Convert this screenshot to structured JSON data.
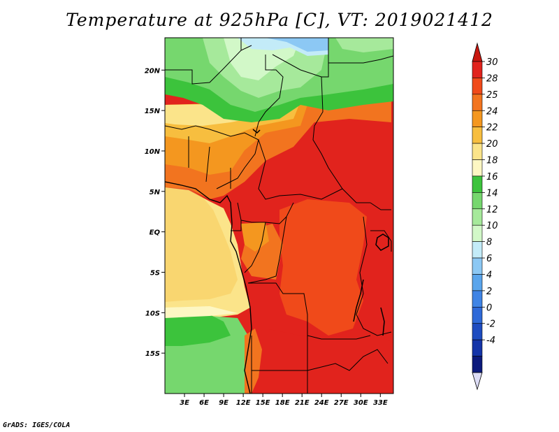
{
  "title": "Temperature at 925hPa [C], VT: 2019021412",
  "credit": "GrADS: IGES/COLA",
  "map": {
    "lon_range": [
      0,
      35
    ],
    "lat_range": [
      -20,
      24
    ],
    "x_ticks": [
      {
        "lon": 3,
        "label": "3E"
      },
      {
        "lon": 6,
        "label": "6E"
      },
      {
        "lon": 9,
        "label": "9E"
      },
      {
        "lon": 12,
        "label": "12E"
      },
      {
        "lon": 15,
        "label": "15E"
      },
      {
        "lon": 18,
        "label": "18E"
      },
      {
        "lon": 21,
        "label": "21E"
      },
      {
        "lon": 24,
        "label": "24E"
      },
      {
        "lon": 27,
        "label": "27E"
      },
      {
        "lon": 30,
        "label": "30E"
      },
      {
        "lon": 33,
        "label": "33E"
      }
    ],
    "y_ticks": [
      {
        "lat": 20,
        "label": "20N"
      },
      {
        "lat": 15,
        "label": "15N"
      },
      {
        "lat": 10,
        "label": "10N"
      },
      {
        "lat": 5,
        "label": "5N"
      },
      {
        "lat": 0,
        "label": "EQ"
      },
      {
        "lat": -5,
        "label": "5S"
      },
      {
        "lat": -10,
        "label": "10S"
      },
      {
        "lat": -15,
        "label": "15S"
      }
    ]
  },
  "colorbar": {
    "labels": [
      "30",
      "28",
      "25",
      "24",
      "22",
      "20",
      "18",
      "16",
      "14",
      "12",
      "10",
      "8",
      "6",
      "4",
      "2",
      "0",
      "-2",
      "-4"
    ],
    "colors": [
      "#e1231d",
      "#f04a1a",
      "#f2741f",
      "#f4971f",
      "#f7be3f",
      "#fbe48a",
      "#fdf7c3",
      "#3cc33c",
      "#76d76e",
      "#a6e99b",
      "#d2f8c8",
      "#c3ebf8",
      "#8cc8f4",
      "#5aa5ec",
      "#3f84e5",
      "#2e69d8",
      "#1e4cc0",
      "#1434a8",
      "#0c1a7c"
    ],
    "top_arrow": "#c8170f",
    "bottom_arrow": "#dcdcf5"
  }
}
